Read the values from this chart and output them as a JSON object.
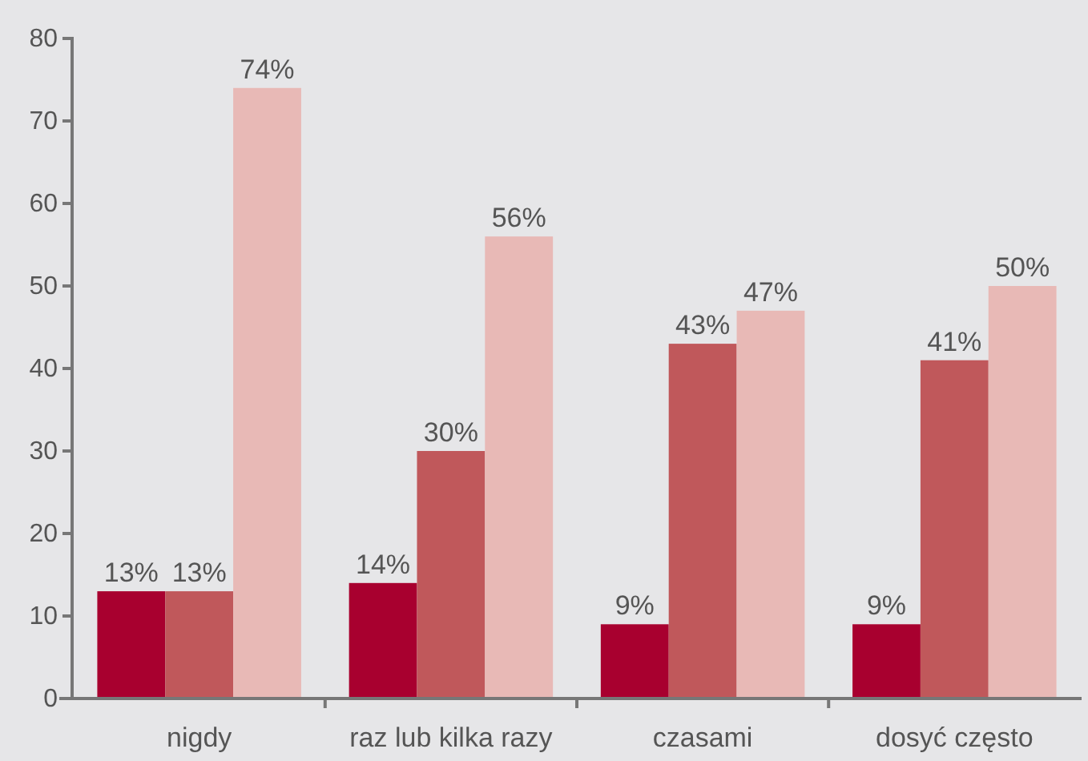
{
  "chart_data": {
    "type": "bar",
    "categories": [
      "nigdy",
      "raz lub kilka razy",
      "czasami",
      "dosyć często"
    ],
    "series": [
      {
        "color": "#a8002f",
        "values": [
          13,
          14,
          9,
          9
        ],
        "value_labels": [
          "13%",
          "14%",
          "9%",
          "9%"
        ]
      },
      {
        "color": "#c0585b",
        "values": [
          13,
          30,
          43,
          41
        ],
        "value_labels": [
          "13%",
          "30%",
          "43%",
          "41%"
        ]
      },
      {
        "color": "#e8b9b6",
        "values": [
          74,
          56,
          47,
          50
        ],
        "value_labels": [
          "74%",
          "56%",
          "47%",
          "50%"
        ]
      }
    ],
    "ylim": [
      0,
      80
    ],
    "yticks": [
      0,
      10,
      20,
      30,
      40,
      50,
      60,
      70,
      80
    ],
    "grid": false
  }
}
